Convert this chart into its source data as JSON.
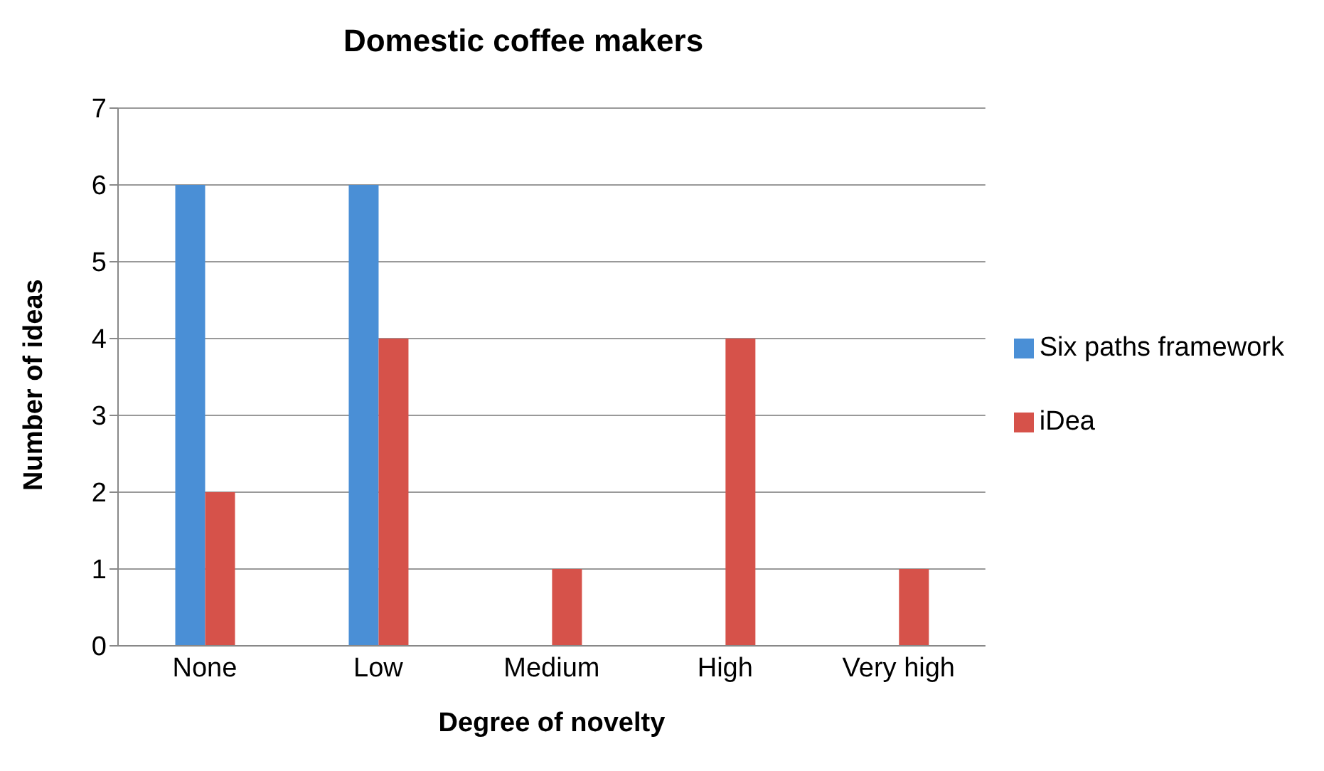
{
  "chart_data": {
    "type": "bar",
    "title": "Domestic coffee makers",
    "xlabel": "Degree of novelty",
    "ylabel": "Number of ideas",
    "categories": [
      "None",
      "Low",
      "Medium",
      "High",
      "Very high"
    ],
    "series": [
      {
        "name": "Six paths framework",
        "color": "#4a8fd6",
        "values": [
          6,
          6,
          0,
          0,
          0
        ]
      },
      {
        "name": "iDea",
        "color": "#d6524a",
        "values": [
          2,
          4,
          1,
          4,
          1
        ]
      }
    ],
    "ylim": [
      0,
      7
    ],
    "yticks": [
      0,
      1,
      2,
      3,
      4,
      5,
      6,
      7
    ],
    "grid": "y",
    "legend": "right"
  }
}
